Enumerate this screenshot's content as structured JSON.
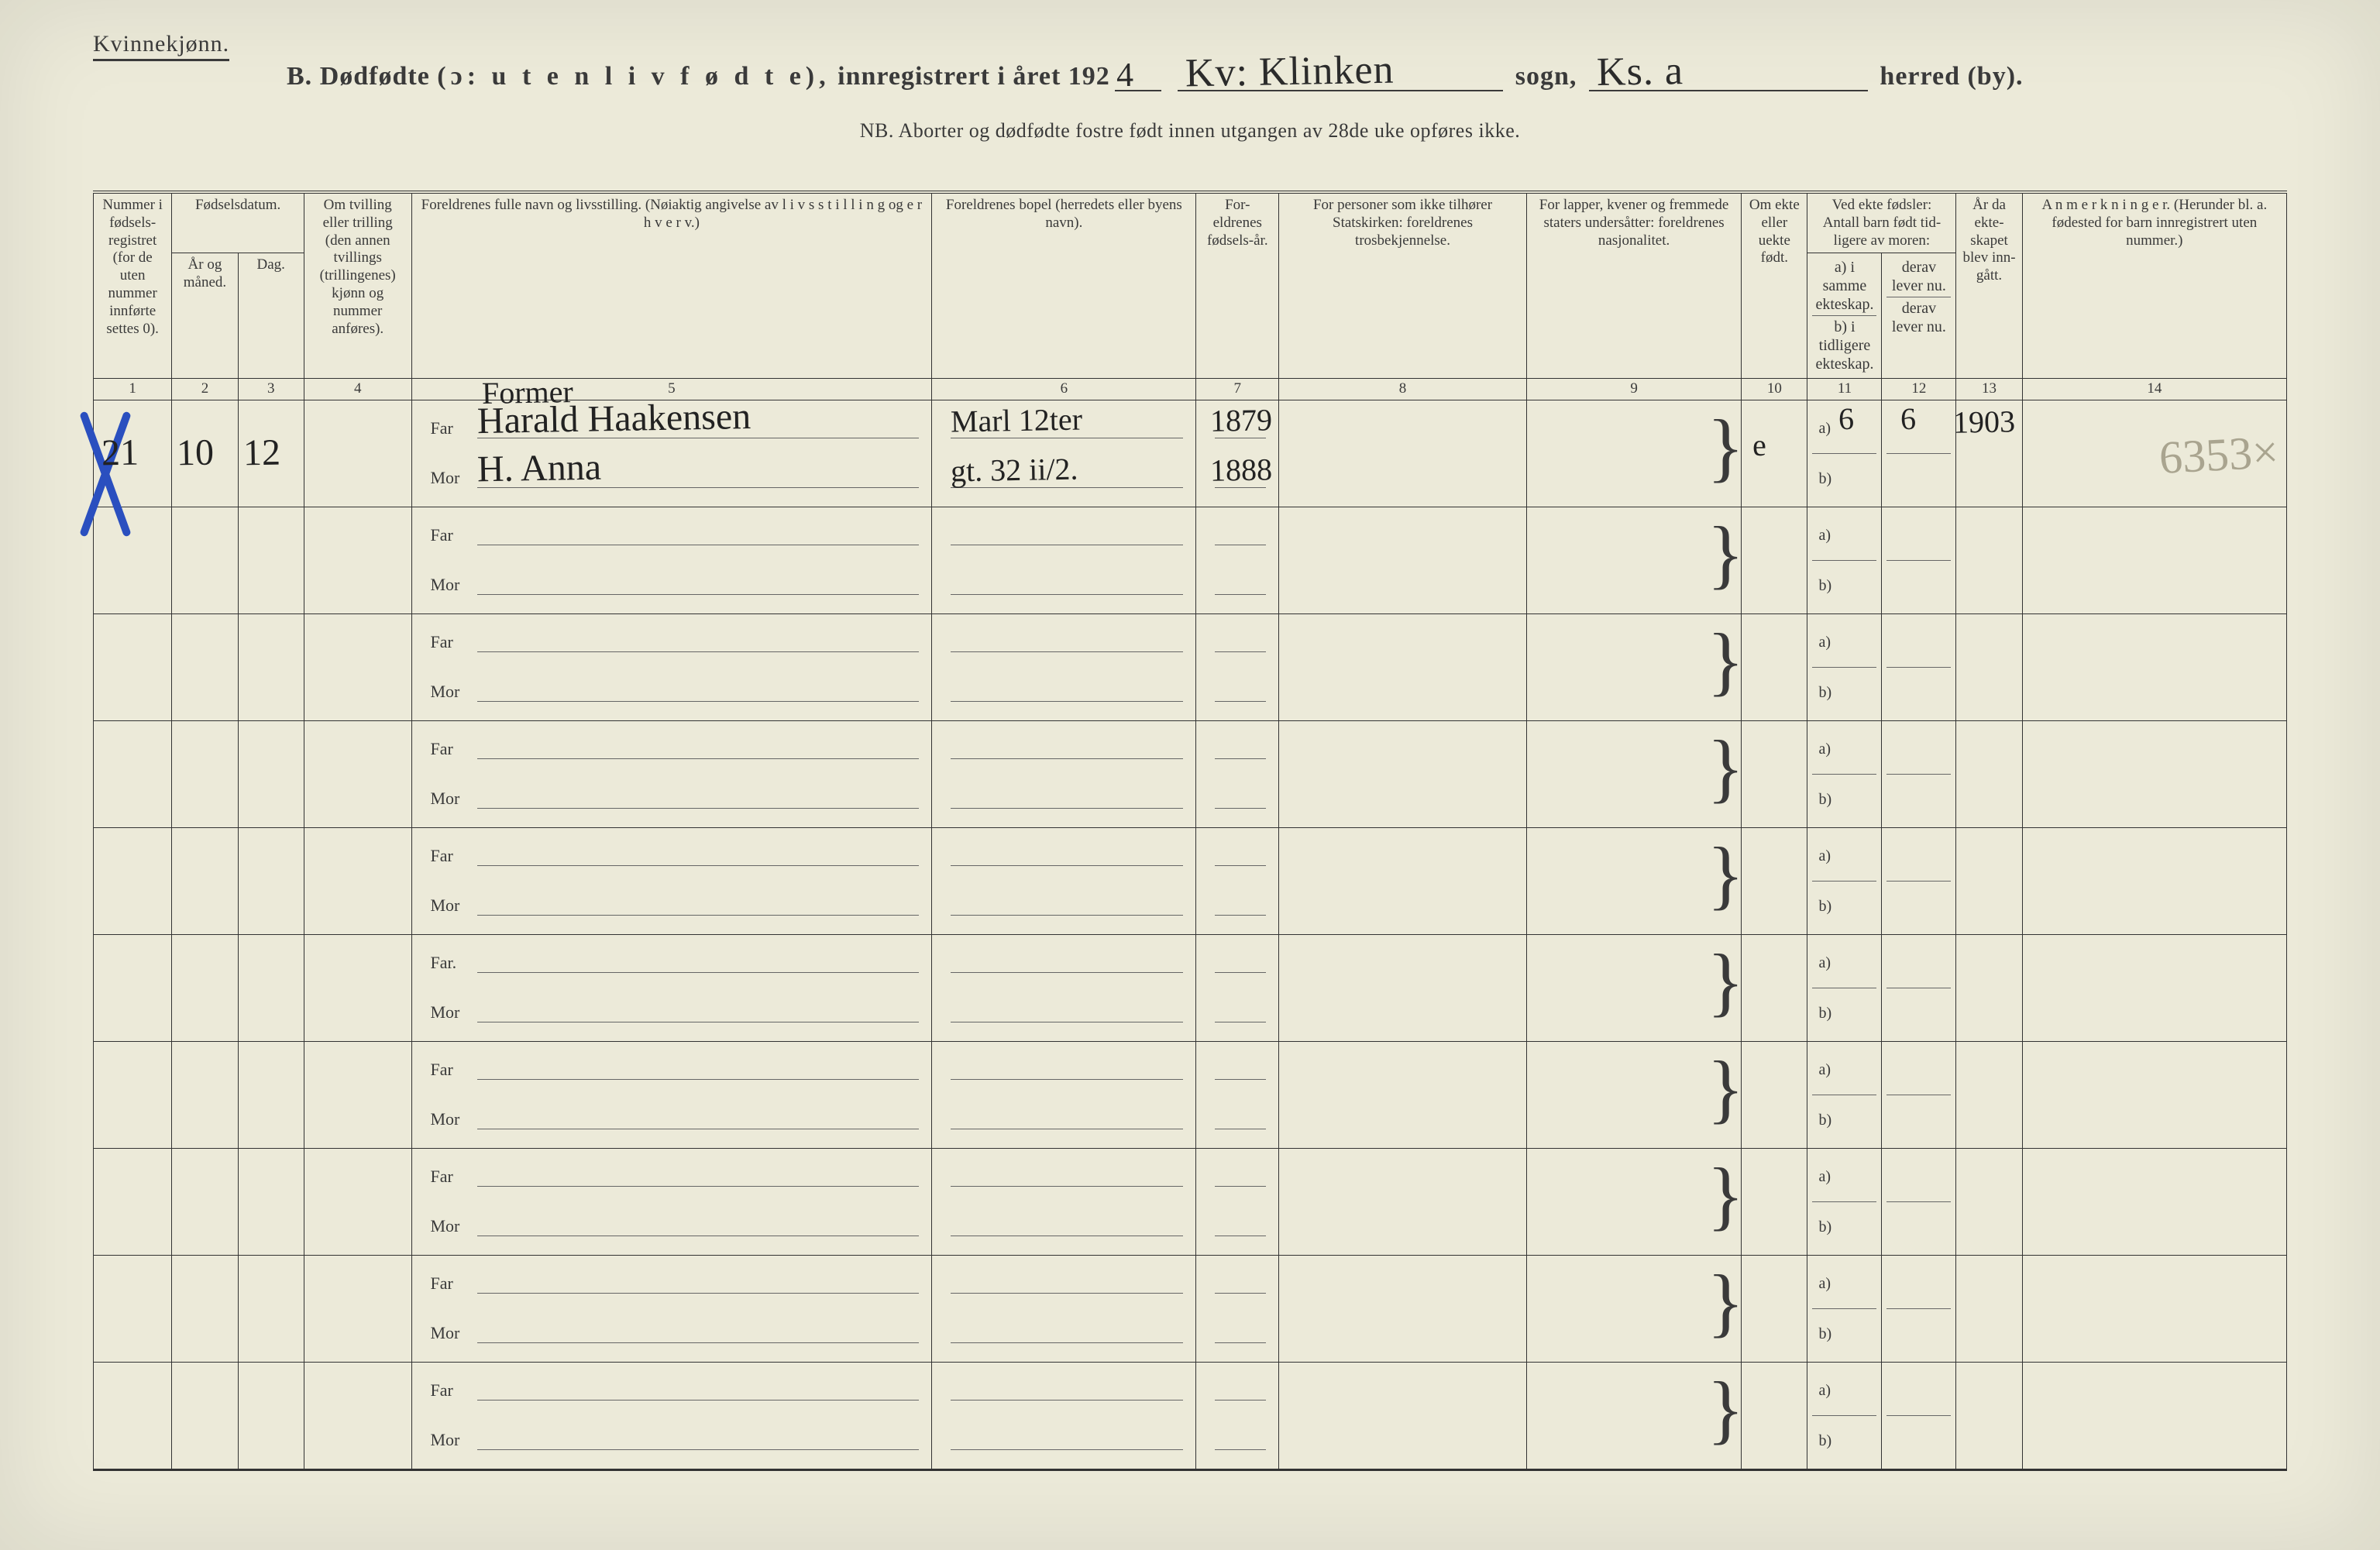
{
  "header": {
    "gender": "Kvinnekjønn.",
    "title_B": "B.",
    "title_dodfodte": "Dødfødte",
    "title_paren": "(ɔ: u t e n  l i v  f ø d t e),",
    "title_innreg": "innregistrert i året 192",
    "year_suffix": "4",
    "sogn": "Kv: Klinken",
    "label_sogn": "sogn,",
    "herred": "Ks. a",
    "label_herred": "herred (by).",
    "nb": "NB.  Aborter og dødfødte fostre født innen utgangen av 28de uke opføres ikke."
  },
  "columns": {
    "c1": "Nummer i fødsels-registret (for de uten nummer innførte settes 0).",
    "c23_top": "Fødselsdatum.",
    "c2": "År og måned.",
    "c3": "Dag.",
    "c4": "Om tvilling eller trilling (den annen tvillings (trillingenes) kjønn og nummer anføres).",
    "c5": "Foreldrenes fulle navn og livsstilling. (Nøiaktig angivelse av l i v s s t i l l i n g  og  e r h v e r v.)",
    "c6": "Foreldrenes bopel (herredets eller byens navn).",
    "c7": "For-eldrenes fødsels-år.",
    "c8": "For personer som ikke tilhører Statskirken: foreldrenes trosbekjennelse.",
    "c9": "For lapper, kvener og fremmede staters undersåtter: foreldrenes nasjonalitet.",
    "c10": "Om ekte eller uekte født.",
    "c11_12_top": "Ved ekte fødsler: Antall barn født tid-ligere av moren:",
    "c11a": "a) i samme ekteskap.",
    "c11b": "b) i tidligere ekteskap.",
    "c12a": "derav lever nu.",
    "c12b": "derav lever nu.",
    "c13": "År da ekte-skapet blev inn-gått.",
    "c14": "A n m e r k n i n g e r. (Herunder bl. a. fødested for barn innregistrert uten nummer.)",
    "n1": "1",
    "n2": "2",
    "n3": "3",
    "n4": "4",
    "n5": "5",
    "n6": "6",
    "n7": "7",
    "n8": "8",
    "n9": "9",
    "n10": "10",
    "n11": "11",
    "n12": "12",
    "n13": "13",
    "n14": "14"
  },
  "labels": {
    "far": "Far",
    "mor": "Mor",
    "far_dot": "Far.",
    "a": "a)",
    "b": "b)"
  },
  "entry": {
    "num": "21",
    "month": "10",
    "day": "12",
    "occupation": "Former",
    "far_name": "Harald Haakensen",
    "mor_name": "H. Anna",
    "far_bopel": "Marl 12ter",
    "mor_bopel": "gt. 32 ii/2.",
    "far_year": "1879",
    "mor_year": "1888",
    "ekte": "e",
    "born_a": "6",
    "live_a": "6",
    "marriage_year": "1903",
    "pencil_note": "6353×"
  },
  "style": {
    "paper_bg": "#ecead9",
    "ink": "#3a3a3a",
    "blue": "#2a4fbf",
    "pencil": "#a9a48f",
    "rows": 10
  }
}
